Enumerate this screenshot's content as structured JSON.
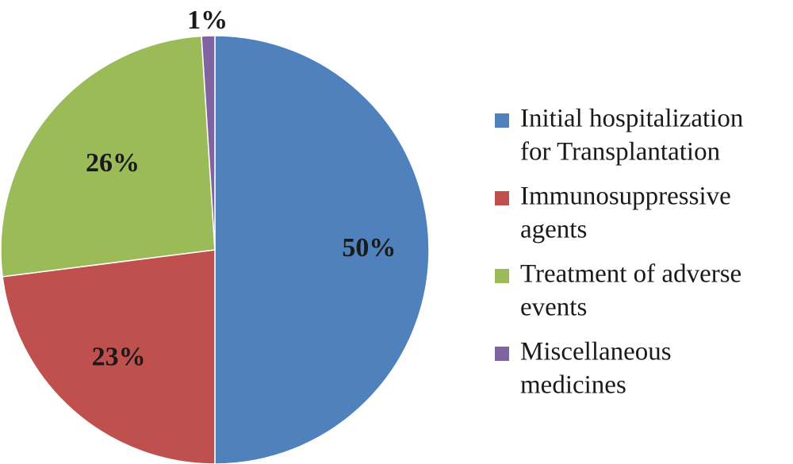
{
  "chart_data": {
    "type": "pie",
    "title": "",
    "slices": [
      {
        "label": "Initial hospitalization for Transplantation",
        "legend_lines": [
          "Initial hospitalization",
          "for Transplantation"
        ],
        "value": 50,
        "display": "50%",
        "color": "#4F81BD"
      },
      {
        "label": "Immunosuppressive agents",
        "legend_lines": [
          "Immunosuppressive",
          "agents"
        ],
        "value": 23,
        "display": "23%",
        "color": "#C0504D"
      },
      {
        "label": "Treatment of adverse events",
        "legend_lines": [
          "Treatment of adverse",
          "events"
        ],
        "value": 26,
        "display": "26%",
        "color": "#9BBB59"
      },
      {
        "label": "Miscellaneous medicines",
        "legend_lines": [
          "Miscellaneous",
          "medicines"
        ],
        "value": 1,
        "display": "1%",
        "color": "#8064A2"
      }
    ],
    "legend_position": "right"
  }
}
